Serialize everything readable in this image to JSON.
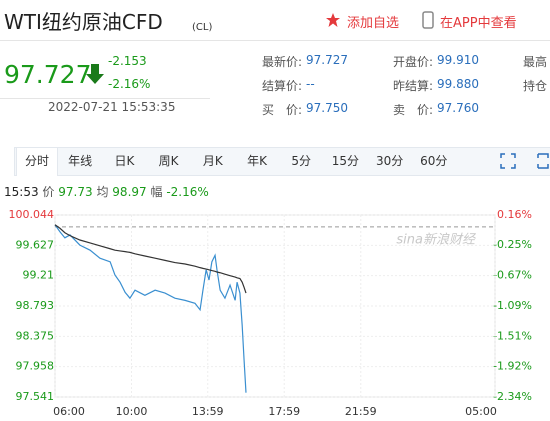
{
  "header": {
    "title": "WTI纽约原油CFD",
    "code": "(CL)",
    "add_watch": "添加自选",
    "open_app": "在APP中查看"
  },
  "quote": {
    "price": "97.727",
    "change": "-2.153",
    "change_pct": "-2.16%",
    "time": "2022-07-21 15:53:35"
  },
  "fields": [
    {
      "rows": [
        {
          "label": "最新价:",
          "value": "97.727"
        },
        {
          "label": "结算价:",
          "value": "--"
        },
        {
          "label": "买　价:",
          "value": "97.750"
        }
      ]
    },
    {
      "rows": [
        {
          "label": "开盘价:",
          "value": "99.910"
        },
        {
          "label": "昨结算:",
          "value": "99.880"
        },
        {
          "label": "卖　价:",
          "value": "97.760"
        }
      ]
    },
    {
      "rows": [
        {
          "label": "最高"
        },
        {
          "label": "持仓"
        }
      ]
    }
  ],
  "tabs": [
    "分时",
    "年线",
    "日K",
    "周K",
    "月K",
    "年K",
    "5分",
    "15分",
    "30分",
    "60分"
  ],
  "info": {
    "time": "15:53",
    "price_label": "价",
    "price": "97.73",
    "avg_label": "均",
    "avg": "98.97",
    "pct_label": "幅",
    "pct": "-2.16%"
  },
  "chart_data": {
    "type": "line",
    "watermark": "sina新浪财经",
    "x": [
      0,
      16,
      31,
      47,
      78,
      110,
      141,
      173,
      188,
      204,
      220,
      235,
      251,
      282,
      314,
      345,
      376,
      408,
      439,
      455,
      464,
      474,
      483,
      492,
      502,
      508,
      518,
      533,
      549,
      565,
      571,
      580,
      587,
      593,
      599
    ],
    "series": [
      {
        "color": "#3a8fd0",
        "values": [
          99.91,
          99.81,
          99.73,
          99.77,
          99.63,
          99.56,
          99.45,
          99.4,
          99.22,
          99.12,
          98.98,
          98.9,
          99.01,
          98.94,
          99.01,
          98.97,
          98.9,
          98.87,
          98.83,
          98.74,
          99.01,
          99.29,
          99.15,
          99.4,
          99.49,
          99.29,
          99.01,
          98.9,
          99.08,
          98.87,
          99.12,
          98.97,
          98.53,
          98.05,
          97.6
        ]
      },
      {
        "color": "#333333",
        "values": [
          99.91,
          99.86,
          99.8,
          99.76,
          99.7,
          99.66,
          99.62,
          99.58,
          99.56,
          99.55,
          99.54,
          99.53,
          99.51,
          99.48,
          99.45,
          99.42,
          99.39,
          99.37,
          99.34,
          99.32,
          99.31,
          99.3,
          99.29,
          99.28,
          99.27,
          99.26,
          99.25,
          99.23,
          99.21,
          99.19,
          99.18,
          99.17,
          99.12,
          99.05,
          98.97
        ]
      }
    ],
    "xlim": [
      0,
      1380
    ],
    "xticks": [
      {
        "value": 0,
        "label": "06:00"
      },
      {
        "value": 240,
        "label": "10:00"
      },
      {
        "value": 479,
        "label": "13:59"
      },
      {
        "value": 719,
        "label": "17:59"
      },
      {
        "value": 959,
        "label": "21:59"
      },
      {
        "value": 1380,
        "label": "05:00"
      }
    ],
    "ylim": [
      97.541,
      100.044
    ],
    "yticks": [
      100.044,
      99.627,
      99.21,
      98.793,
      98.375,
      97.958,
      97.541
    ],
    "y2lim": [
      -2.34,
      0.16
    ],
    "y2ticks": [
      {
        "value": 0.16,
        "label": "0.16%"
      },
      {
        "value": -0.25,
        "label": "-0.25%"
      },
      {
        "value": -0.67,
        "label": "-0.67%"
      },
      {
        "value": -1.09,
        "label": "-1.09%"
      },
      {
        "value": -1.51,
        "label": "-1.51%"
      },
      {
        "value": -1.92,
        "label": "-1.92%"
      },
      {
        "value": -2.34,
        "label": "-2.34%"
      }
    ],
    "grid": true
  }
}
